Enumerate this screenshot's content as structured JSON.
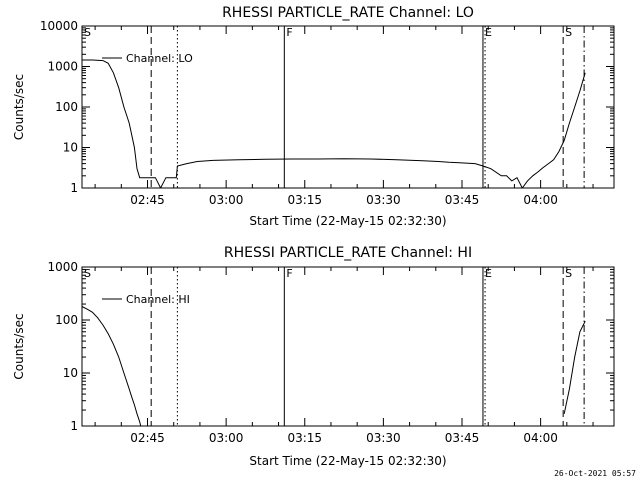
{
  "chart_data": [
    {
      "type": "line",
      "title": "RHESSI PARTICLE_RATE Channel: LO",
      "xlabel": "Start Time (22-May-15 02:32:30)",
      "ylabel": "Counts/sec",
      "yscale": "log",
      "ylim": [
        1,
        10000
      ],
      "xlim_minutes": [
        0,
        101.5
      ],
      "x_ticks": [
        {
          "minute": 12.5,
          "label": "02:45"
        },
        {
          "minute": 27.5,
          "label": "03:00"
        },
        {
          "minute": 42.5,
          "label": "03:15"
        },
        {
          "minute": 57.5,
          "label": "03:30"
        },
        {
          "minute": 72.5,
          "label": "03:45"
        },
        {
          "minute": 87.5,
          "label": "04:00"
        }
      ],
      "y_ticks": [
        {
          "value": 1,
          "label": "1"
        },
        {
          "value": 10,
          "label": "10"
        },
        {
          "value": 100,
          "label": "100"
        },
        {
          "value": 1000,
          "label": "1000"
        },
        {
          "value": 10000,
          "label": "10000"
        }
      ],
      "legend": {
        "label": "Channel: LO",
        "placement": "top-left"
      },
      "markers": [
        {
          "minute": 0,
          "label": "S",
          "style": "dash-dot"
        },
        {
          "minute": 13.2,
          "label": "",
          "style": "dashed"
        },
        {
          "minute": 18.2,
          "label": "",
          "style": "dotted"
        },
        {
          "minute": 38.6,
          "label": "F",
          "style": "solid"
        },
        {
          "minute": 76.5,
          "label": "E",
          "style": "solid"
        },
        {
          "minute": 76.9,
          "label": "",
          "style": "dotted"
        },
        {
          "minute": 91.8,
          "label": "S",
          "style": "dashed"
        },
        {
          "minute": 95.8,
          "label": "",
          "style": "dash-dot"
        }
      ],
      "series": [
        {
          "name": "Channel: LO",
          "x": [
            0,
            2,
            4,
            5,
            6,
            7,
            8,
            9,
            10,
            10.5,
            11,
            13,
            13.2,
            14,
            15,
            16,
            17,
            18,
            18.2,
            20,
            22,
            25,
            30,
            35,
            40,
            45,
            50,
            55,
            60,
            65,
            68,
            70,
            72,
            75,
            76.5,
            78,
            80,
            81,
            82,
            83,
            84,
            85,
            86,
            87,
            88,
            89,
            90,
            91,
            92,
            93,
            94,
            95,
            96
          ],
          "y": [
            1450,
            1450,
            1400,
            1200,
            700,
            300,
            100,
            40,
            10,
            3,
            1.8,
            1.8,
            1.8,
            1.8,
            0.8,
            1.8,
            1.8,
            1.8,
            3.5,
            4.0,
            4.5,
            4.8,
            5.0,
            5.1,
            5.2,
            5.2,
            5.3,
            5.2,
            5.0,
            4.7,
            4.5,
            4.3,
            4.2,
            4.0,
            3.5,
            3.0,
            2.0,
            2.0,
            1.5,
            1.8,
            0.8,
            1.5,
            2.0,
            2.5,
            3.2,
            4.0,
            5.0,
            8.0,
            15,
            40,
            100,
            250,
            700
          ]
        }
      ]
    },
    {
      "type": "line",
      "title": "RHESSI PARTICLE_RATE Channel: HI",
      "xlabel": "Start Time (22-May-15 02:32:30)",
      "ylabel": "Counts/sec",
      "yscale": "log",
      "ylim": [
        1,
        1000
      ],
      "xlim_minutes": [
        0,
        101.5
      ],
      "x_ticks": [
        {
          "minute": 12.5,
          "label": "02:45"
        },
        {
          "minute": 27.5,
          "label": "03:00"
        },
        {
          "minute": 42.5,
          "label": "03:15"
        },
        {
          "minute": 57.5,
          "label": "03:30"
        },
        {
          "minute": 72.5,
          "label": "03:45"
        },
        {
          "minute": 87.5,
          "label": "04:00"
        }
      ],
      "y_ticks": [
        {
          "value": 1,
          "label": "1"
        },
        {
          "value": 10,
          "label": "10"
        },
        {
          "value": 100,
          "label": "100"
        },
        {
          "value": 1000,
          "label": "1000"
        }
      ],
      "legend": {
        "label": "Channel: HI",
        "placement": "top-left"
      },
      "markers": [
        {
          "minute": 0,
          "label": "S",
          "style": "dash-dot"
        },
        {
          "minute": 13.2,
          "label": "",
          "style": "dashed"
        },
        {
          "minute": 18.2,
          "label": "",
          "style": "dotted"
        },
        {
          "minute": 38.6,
          "label": "F",
          "style": "solid"
        },
        {
          "minute": 76.5,
          "label": "E",
          "style": "solid"
        },
        {
          "minute": 76.9,
          "label": "",
          "style": "dotted"
        },
        {
          "minute": 91.8,
          "label": "S",
          "style": "dashed"
        },
        {
          "minute": 95.8,
          "label": "",
          "style": "dash-dot"
        }
      ],
      "series": [
        {
          "name": "Channel: HI",
          "x": [
            0,
            1,
            2,
            3,
            4,
            5,
            6,
            7,
            8,
            9,
            9.5,
            10,
            10.5,
            11,
            11.2
          ],
          "y": [
            180,
            160,
            140,
            110,
            80,
            55,
            35,
            20,
            10,
            5,
            3.5,
            2.5,
            1.7,
            1.2,
            1.0
          ]
        },
        {
          "name": "Channel: HI",
          "x": [
            92,
            93,
            94,
            95,
            96
          ],
          "y": [
            1.7,
            5,
            20,
            60,
            95
          ]
        }
      ]
    }
  ],
  "footer": "26-Oct-2021 05:57"
}
